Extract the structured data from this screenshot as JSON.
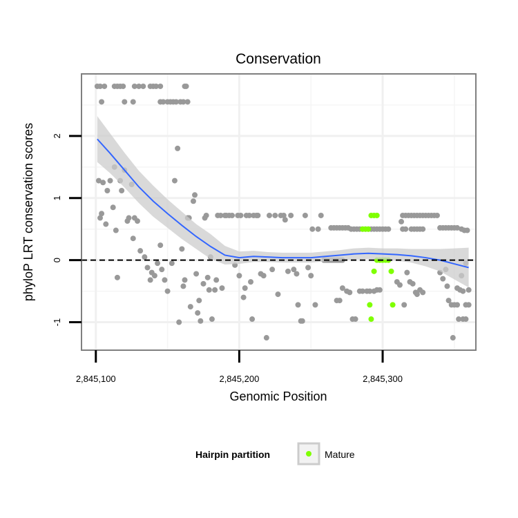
{
  "chart_data": {
    "type": "scatter",
    "title": "Conservation",
    "xlabel": "Genomic Position",
    "ylabel": "phyloP LRT conservation scores",
    "xlim": [
      2845090,
      2845365
    ],
    "ylim": [
      -1.45,
      3.0
    ],
    "x_ticks": [
      {
        "value": 2845100,
        "label": "2,845,100"
      },
      {
        "value": 2845200,
        "label": "2,845,200"
      },
      {
        "value": 2845300,
        "label": "2,845,300"
      }
    ],
    "y_ticks": [
      {
        "value": -1,
        "label": "-1"
      },
      {
        "value": 0,
        "label": "0"
      },
      {
        "value": 1,
        "label": "1"
      },
      {
        "value": 2,
        "label": "2"
      }
    ],
    "reference_line": {
      "y": 0,
      "style": "dashed"
    },
    "colors": {
      "background_points": "#999999",
      "mature_points": "#7fff00",
      "smooth_line": "#3366ff",
      "ribbon": "#cccccc",
      "panel_border": "#7f7f7f"
    },
    "series": [
      {
        "name": "other",
        "color": "#999999",
        "points": [
          [
            2845101,
            2.8
          ],
          [
            2845103,
            2.8
          ],
          [
            2845106,
            2.8
          ],
          [
            2845104,
            2.55
          ],
          [
            2845113,
            2.8
          ],
          [
            2845115,
            2.8
          ],
          [
            2845117,
            2.8
          ],
          [
            2845119,
            2.8
          ],
          [
            2845127,
            2.8
          ],
          [
            2845130,
            2.8
          ],
          [
            2845133,
            2.8
          ],
          [
            2845138,
            2.8
          ],
          [
            2845140,
            2.8
          ],
          [
            2845142,
            2.8
          ],
          [
            2845145,
            2.8
          ],
          [
            2845162,
            2.8
          ],
          [
            2845163,
            2.8
          ],
          [
            2845120,
            2.55
          ],
          [
            2845126,
            2.55
          ],
          [
            2845145,
            2.55
          ],
          [
            2845147,
            2.55
          ],
          [
            2845150,
            2.55
          ],
          [
            2845152,
            2.55
          ],
          [
            2845154,
            2.55
          ],
          [
            2845156,
            2.55
          ],
          [
            2845159,
            2.55
          ],
          [
            2845161,
            2.55
          ],
          [
            2845164,
            2.55
          ],
          [
            2845102,
            1.28
          ],
          [
            2845103,
            0.68
          ],
          [
            2845104,
            0.75
          ],
          [
            2845105,
            1.25
          ],
          [
            2845107,
            0.58
          ],
          [
            2845108,
            1.12
          ],
          [
            2845110,
            1.28
          ],
          [
            2845112,
            0.85
          ],
          [
            2845113,
            1.5
          ],
          [
            2845114,
            0.48
          ],
          [
            2845115,
            -0.28
          ],
          [
            2845117,
            1.28
          ],
          [
            2845118,
            1.12
          ],
          [
            2845120,
            1.45
          ],
          [
            2845122,
            0.63
          ],
          [
            2845123,
            0.68
          ],
          [
            2845125,
            1.22
          ],
          [
            2845126,
            0.35
          ],
          [
            2845127,
            0.68
          ],
          [
            2845129,
            0.63
          ],
          [
            2845131,
            0.15
          ],
          [
            2845134,
            0.05
          ],
          [
            2845136,
            -0.12
          ],
          [
            2845138,
            -0.32
          ],
          [
            2845139,
            -0.2
          ],
          [
            2845141,
            -0.25
          ],
          [
            2845143,
            -0.05
          ],
          [
            2845145,
            0.24
          ],
          [
            2845146,
            -0.15
          ],
          [
            2845148,
            -0.32
          ],
          [
            2845150,
            -0.5
          ],
          [
            2845153,
            -0.05
          ],
          [
            2845155,
            1.28
          ],
          [
            2845157,
            1.8
          ],
          [
            2845158,
            -1.0
          ],
          [
            2845160,
            0.18
          ],
          [
            2845161,
            -0.42
          ],
          [
            2845162,
            -0.32
          ],
          [
            2845164,
            0.68
          ],
          [
            2845165,
            0.68
          ],
          [
            2845166,
            -0.75
          ],
          [
            2845168,
            0.95
          ],
          [
            2845169,
            1.05
          ],
          [
            2845170,
            -0.22
          ],
          [
            2845171,
            -0.85
          ],
          [
            2845172,
            -0.65
          ],
          [
            2845173,
            -0.98
          ],
          [
            2845175,
            -0.38
          ],
          [
            2845176,
            0.68
          ],
          [
            2845177,
            0.72
          ],
          [
            2845178,
            -0.28
          ],
          [
            2845179,
            -0.48
          ],
          [
            2845180,
            0.05
          ],
          [
            2845181,
            -0.95
          ],
          [
            2845183,
            -0.48
          ],
          [
            2845184,
            -0.32
          ],
          [
            2845185,
            0.72
          ],
          [
            2845187,
            0.72
          ],
          [
            2845188,
            -0.45
          ],
          [
            2845190,
            0.72
          ],
          [
            2845191,
            0.72
          ],
          [
            2845193,
            0.72
          ],
          [
            2845195,
            0.72
          ],
          [
            2845197,
            -0.08
          ],
          [
            2845199,
            0.72
          ],
          [
            2845200,
            -0.25
          ],
          [
            2845201,
            0.72
          ],
          [
            2845203,
            -0.6
          ],
          [
            2845204,
            -0.45
          ],
          [
            2845205,
            0.72
          ],
          [
            2845207,
            0.72
          ],
          [
            2845208,
            -0.35
          ],
          [
            2845209,
            -0.95
          ],
          [
            2845210,
            0.72
          ],
          [
            2845212,
            0.72
          ],
          [
            2845213,
            0.72
          ],
          [
            2845215,
            -0.22
          ],
          [
            2845217,
            -0.25
          ],
          [
            2845219,
            -1.25
          ],
          [
            2845221,
            0.72
          ],
          [
            2845223,
            -0.15
          ],
          [
            2845225,
            0.72
          ],
          [
            2845227,
            -0.55
          ],
          [
            2845229,
            0.72
          ],
          [
            2845231,
            0.72
          ],
          [
            2845232,
            0.65
          ],
          [
            2845234,
            -0.18
          ],
          [
            2845236,
            0.72
          ],
          [
            2845238,
            -0.15
          ],
          [
            2845240,
            -0.22
          ],
          [
            2845241,
            -0.72
          ],
          [
            2845243,
            -0.98
          ],
          [
            2845244,
            -0.98
          ],
          [
            2845246,
            0.72
          ],
          [
            2845248,
            -0.12
          ],
          [
            2845250,
            -0.25
          ],
          [
            2845251,
            0.5
          ],
          [
            2845253,
            -0.72
          ],
          [
            2845255,
            0.5
          ],
          [
            2845257,
            0.72
          ],
          [
            2845259,
            0.0
          ],
          [
            2845260,
            0.0
          ],
          [
            2845261,
            0.0
          ],
          [
            2845262,
            0.0
          ],
          [
            2845263,
            0.0
          ],
          [
            2845264,
            0.0
          ],
          [
            2845265,
            0.0
          ],
          [
            2845266,
            0.0
          ],
          [
            2845267,
            0.0
          ],
          [
            2845268,
            0.0
          ],
          [
            2845269,
            0.0
          ],
          [
            2845270,
            0.0
          ],
          [
            2845271,
            0.0
          ],
          [
            2845272,
            0.0
          ],
          [
            2845264,
            0.52
          ],
          [
            2845266,
            0.52
          ],
          [
            2845268,
            0.52
          ],
          [
            2845270,
            0.52
          ],
          [
            2845272,
            0.52
          ],
          [
            2845274,
            0.52
          ],
          [
            2845276,
            0.52
          ],
          [
            2845278,
            0.5
          ],
          [
            2845280,
            0.5
          ],
          [
            2845282,
            0.5
          ],
          [
            2845284,
            0.5
          ],
          [
            2845286,
            0.5
          ],
          [
            2845288,
            0.5
          ],
          [
            2845290,
            0.5
          ],
          [
            2845292,
            0.5
          ],
          [
            2845294,
            0.5
          ],
          [
            2845296,
            0.5
          ],
          [
            2845298,
            0.5
          ],
          [
            2845300,
            0.5
          ],
          [
            2845302,
            0.5
          ],
          [
            2845304,
            0.5
          ],
          [
            2845268,
            -0.65
          ],
          [
            2845270,
            -0.65
          ],
          [
            2845272,
            -0.45
          ],
          [
            2845275,
            -0.5
          ],
          [
            2845277,
            -0.52
          ],
          [
            2845279,
            -0.95
          ],
          [
            2845281,
            -0.95
          ],
          [
            2845284,
            -0.5
          ],
          [
            2845286,
            -0.5
          ],
          [
            2845289,
            -0.5
          ],
          [
            2845291,
            -0.5
          ],
          [
            2845294,
            -0.5
          ],
          [
            2845296,
            -0.48
          ],
          [
            2845298,
            -0.48
          ],
          [
            2845314,
            0.72
          ],
          [
            2845316,
            0.72
          ],
          [
            2845318,
            0.72
          ],
          [
            2845320,
            0.72
          ],
          [
            2845322,
            0.72
          ],
          [
            2845324,
            0.72
          ],
          [
            2845326,
            0.72
          ],
          [
            2845328,
            0.72
          ],
          [
            2845313,
            0.62
          ],
          [
            2845310,
            -0.35
          ],
          [
            2845312,
            -0.4
          ],
          [
            2845314,
            0.5
          ],
          [
            2845316,
            0.5
          ],
          [
            2845320,
            0.5
          ],
          [
            2845322,
            0.5
          ],
          [
            2845324,
            0.5
          ],
          [
            2845326,
            0.5
          ],
          [
            2845328,
            0.5
          ],
          [
            2845315,
            -0.72
          ],
          [
            2845317,
            -0.2
          ],
          [
            2845319,
            -0.35
          ],
          [
            2845321,
            -0.38
          ],
          [
            2845323,
            -0.52
          ],
          [
            2845324,
            -0.55
          ],
          [
            2845326,
            -0.48
          ],
          [
            2845328,
            -0.52
          ],
          [
            2845330,
            0.72
          ],
          [
            2845332,
            0.72
          ],
          [
            2845334,
            0.72
          ],
          [
            2845336,
            0.72
          ],
          [
            2845338,
            0.72
          ],
          [
            2845340,
            -0.2
          ],
          [
            2845342,
            -0.3
          ],
          [
            2845344,
            -0.15
          ],
          [
            2845345,
            -0.42
          ],
          [
            2845346,
            -0.65
          ],
          [
            2845348,
            -0.72
          ],
          [
            2845349,
            -1.25
          ],
          [
            2845350,
            -0.72
          ],
          [
            2845352,
            -0.72
          ],
          [
            2845340,
            0.52
          ],
          [
            2845342,
            0.52
          ],
          [
            2845344,
            0.52
          ],
          [
            2845346,
            0.52
          ],
          [
            2845348,
            0.52
          ],
          [
            2845350,
            0.52
          ],
          [
            2845352,
            0.52
          ],
          [
            2845355,
            0.5
          ],
          [
            2845357,
            0.48
          ],
          [
            2845359,
            0.48
          ],
          [
            2845358,
            -0.05
          ],
          [
            2845360,
            -0.48
          ],
          [
            2845355,
            -0.25
          ],
          [
            2845353,
            -0.95
          ],
          [
            2845356,
            -0.95
          ],
          [
            2845358,
            -0.95
          ],
          [
            2845352,
            -0.45
          ],
          [
            2845354,
            -0.48
          ],
          [
            2845356,
            -0.5
          ],
          [
            2845358,
            -0.72
          ],
          [
            2845360,
            -0.72
          ]
        ]
      },
      {
        "name": "Mature",
        "color": "#7fff00",
        "points": [
          [
            2845286,
            0.5
          ],
          [
            2845288,
            0.5
          ],
          [
            2845290,
            0.5
          ],
          [
            2845292,
            0.72
          ],
          [
            2845294,
            0.72
          ],
          [
            2845296,
            0.72
          ],
          [
            2845294,
            -0.18
          ],
          [
            2845296,
            0.0
          ],
          [
            2845298,
            0.0
          ],
          [
            2845300,
            0.0
          ],
          [
            2845302,
            0.0
          ],
          [
            2845304,
            0.0
          ],
          [
            2845291,
            -0.72
          ],
          [
            2845292,
            -0.95
          ],
          [
            2845306,
            -0.18
          ],
          [
            2845307,
            -0.72
          ]
        ]
      }
    ],
    "smooth": {
      "name": "loess",
      "color": "#3366ff",
      "points": [
        [
          2845101,
          1.95
        ],
        [
          2845110,
          1.72
        ],
        [
          2845120,
          1.45
        ],
        [
          2845130,
          1.18
        ],
        [
          2845140,
          0.95
        ],
        [
          2845150,
          0.75
        ],
        [
          2845160,
          0.56
        ],
        [
          2845170,
          0.38
        ],
        [
          2845180,
          0.22
        ],
        [
          2845190,
          0.08
        ],
        [
          2845200,
          0.04
        ],
        [
          2845210,
          0.06
        ],
        [
          2845220,
          0.05
        ],
        [
          2845230,
          0.04
        ],
        [
          2845240,
          0.04
        ],
        [
          2845250,
          0.04
        ],
        [
          2845260,
          0.06
        ],
        [
          2845270,
          0.08
        ],
        [
          2845280,
          0.1
        ],
        [
          2845290,
          0.11
        ],
        [
          2845300,
          0.1
        ],
        [
          2845310,
          0.09
        ],
        [
          2845320,
          0.07
        ],
        [
          2845330,
          0.04
        ],
        [
          2845340,
          0.0
        ],
        [
          2845350,
          -0.06
        ],
        [
          2845360,
          -0.12
        ]
      ],
      "ribbon_halfwidth": [
        0.37,
        0.32,
        0.28,
        0.26,
        0.25,
        0.23,
        0.22,
        0.2,
        0.2,
        0.15,
        0.1,
        0.09,
        0.08,
        0.08,
        0.08,
        0.08,
        0.08,
        0.08,
        0.09,
        0.09,
        0.09,
        0.1,
        0.11,
        0.14,
        0.18,
        0.25,
        0.32
      ]
    },
    "legend": {
      "title": "Hairpin partition",
      "entries": [
        {
          "label": "Mature",
          "color": "#7fff00"
        }
      ],
      "position": "bottom"
    }
  }
}
